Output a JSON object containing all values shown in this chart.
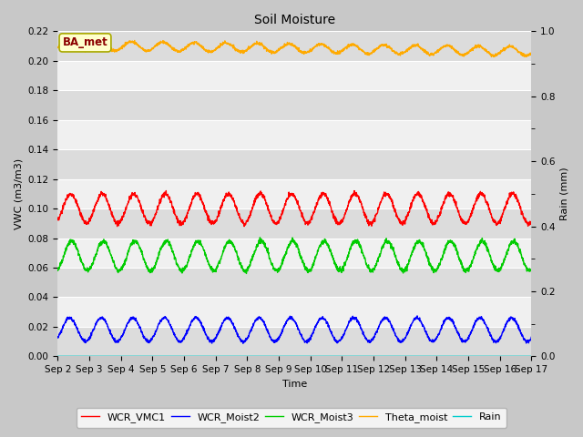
{
  "title": "Soil Moisture",
  "xlabel": "Time",
  "ylabel_left": "VWC (m3/m3)",
  "ylabel_right": "Rain (mm)",
  "ylim_left": [
    0.0,
    0.22
  ],
  "ylim_right": [
    0.0,
    1.0
  ],
  "xlim": [
    0,
    15
  ],
  "xtick_labels": [
    "Sep 2",
    "Sep 3",
    "Sep 4",
    "Sep 5",
    "Sep 6",
    "Sep 7",
    "Sep 8",
    "Sep 9",
    "Sep 10",
    "Sep 11",
    "Sep 12",
    "Sep 13",
    "Sep 14",
    "Sep 15",
    "Sep 16",
    "Sep 17"
  ],
  "fig_bg": "#c8c8c8",
  "plot_bg": "#f0f0f0",
  "band_dark": "#dcdcdc",
  "band_light": "#f0f0f0",
  "legend_labels": [
    "WCR_VMC1",
    "WCR_Moist2",
    "WCR_Moist3",
    "Theta_moist",
    "Rain"
  ],
  "legend_colors": [
    "#ff0000",
    "#0000ff",
    "#00cc00",
    "#ffaa00",
    "#00cccc"
  ],
  "annotation_text": "BA_met",
  "annotation_color": "#8b0000",
  "annotation_bg": "#ffffcc",
  "annotation_edge": "#aaaa00",
  "n_days": 15,
  "n_points_per_day": 144,
  "red_base": 0.1,
  "red_amp": 0.01,
  "green_base": 0.068,
  "green_amp": 0.01,
  "blue_base": 0.018,
  "blue_amp": 0.008,
  "orange_base": 0.2105,
  "orange_amp": 0.003,
  "orange_trend": -0.004,
  "cyan_value": 0.0,
  "line_width": 1.0,
  "title_fontsize": 10,
  "label_fontsize": 8,
  "tick_fontsize": 7.5
}
